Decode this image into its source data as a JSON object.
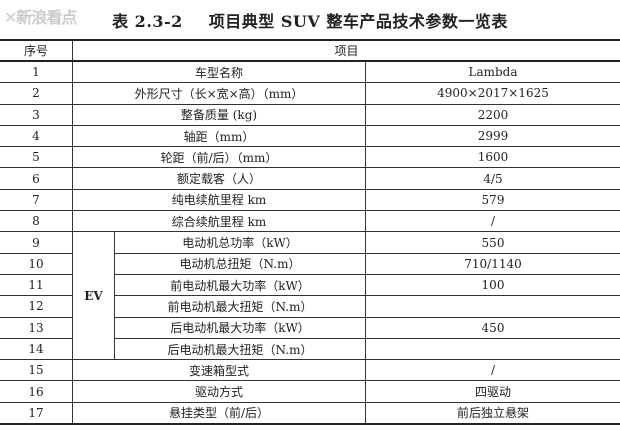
{
  "title": {
    "number": "表 2.3-2",
    "text": "项目典型 SUV 整车产品技术参数一览表"
  },
  "watermark": "新浪看点",
  "header": {
    "seq": "序号",
    "item": "项目"
  },
  "group_label": "EV",
  "rows": [
    {
      "seq": "1",
      "item": "车型名称",
      "value": "Lambda"
    },
    {
      "seq": "2",
      "item": "外形尺寸（长×宽×高）（mm）",
      "value": "4900×2017×1625"
    },
    {
      "seq": "3",
      "item": "整备质量 (kg)",
      "value": "2200"
    },
    {
      "seq": "4",
      "item": "轴距（mm）",
      "value": "2999"
    },
    {
      "seq": "5",
      "item": "轮距（前/后）（mm）",
      "value": "1600"
    },
    {
      "seq": "6",
      "item": "额定载客（人）",
      "value": "4/5"
    },
    {
      "seq": "7",
      "item": "纯电续航里程 km",
      "value": "579"
    },
    {
      "seq": "8",
      "item": "综合续航里程 km",
      "value": "/"
    },
    {
      "seq": "9",
      "item": "电动机总功率（kW）",
      "value": "550"
    },
    {
      "seq": "10",
      "item": "电动机总扭矩（N.m）",
      "value": "710/1140"
    },
    {
      "seq": "11",
      "item": "前电动机最大功率（kW）",
      "value": "100"
    },
    {
      "seq": "12",
      "item": "前电动机最大扭矩（N.m）",
      "value": ""
    },
    {
      "seq": "13",
      "item": "后电动机最大功率（kW）",
      "value": "450"
    },
    {
      "seq": "14",
      "item": "后电动机最大扭矩（N.m）",
      "value": ""
    },
    {
      "seq": "15",
      "item": "变速箱型式",
      "value": "/"
    },
    {
      "seq": "16",
      "item": "驱动方式",
      "value": "四驱动"
    },
    {
      "seq": "17",
      "item": "悬挂类型（前/后）",
      "value": "前后独立悬架"
    }
  ]
}
